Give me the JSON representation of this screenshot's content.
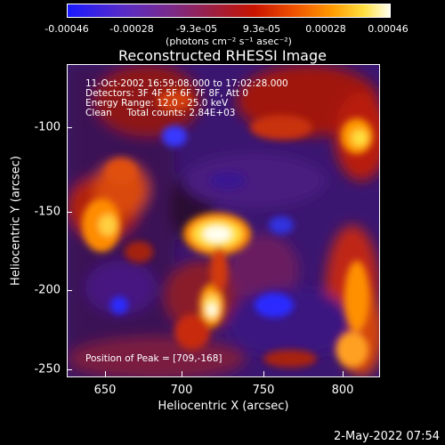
{
  "colorbar": {
    "tick_labels": [
      "-0.00046",
      "-0.00028",
      "-9.3e-05",
      "9.3e-05",
      "0.00028",
      "0.00046"
    ],
    "units": "(photons cm⁻² s⁻¹ asec⁻²)"
  },
  "plot": {
    "title": "Reconstructed RHESSI Image",
    "info_lines": [
      "11-Oct-2002 16:59:08.000 to 17:02:28.000",
      "Detectors: 3F 4F 5F 6F 7F 8F, Att 0",
      "Energy Range: 12.0 - 25.0 keV",
      "Clean     Total counts: 2.84E+03"
    ],
    "peak_text": "Position of Peak = [709,-168]",
    "xlabel": "Heliocentric X (arcsec)",
    "ylabel": "Heliocentric Y (arcsec)",
    "xticks": [
      "650",
      "700",
      "750",
      "800"
    ],
    "yticks": [
      "-100",
      "-150",
      "-200",
      "-250"
    ],
    "timestamp": "2-May-2022 07:54"
  },
  "colors": {
    "background": "#000000",
    "low": "#1a1aff",
    "mid": "#7a2a8a",
    "high": "#ff9a00",
    "peak": "#fffff0"
  }
}
